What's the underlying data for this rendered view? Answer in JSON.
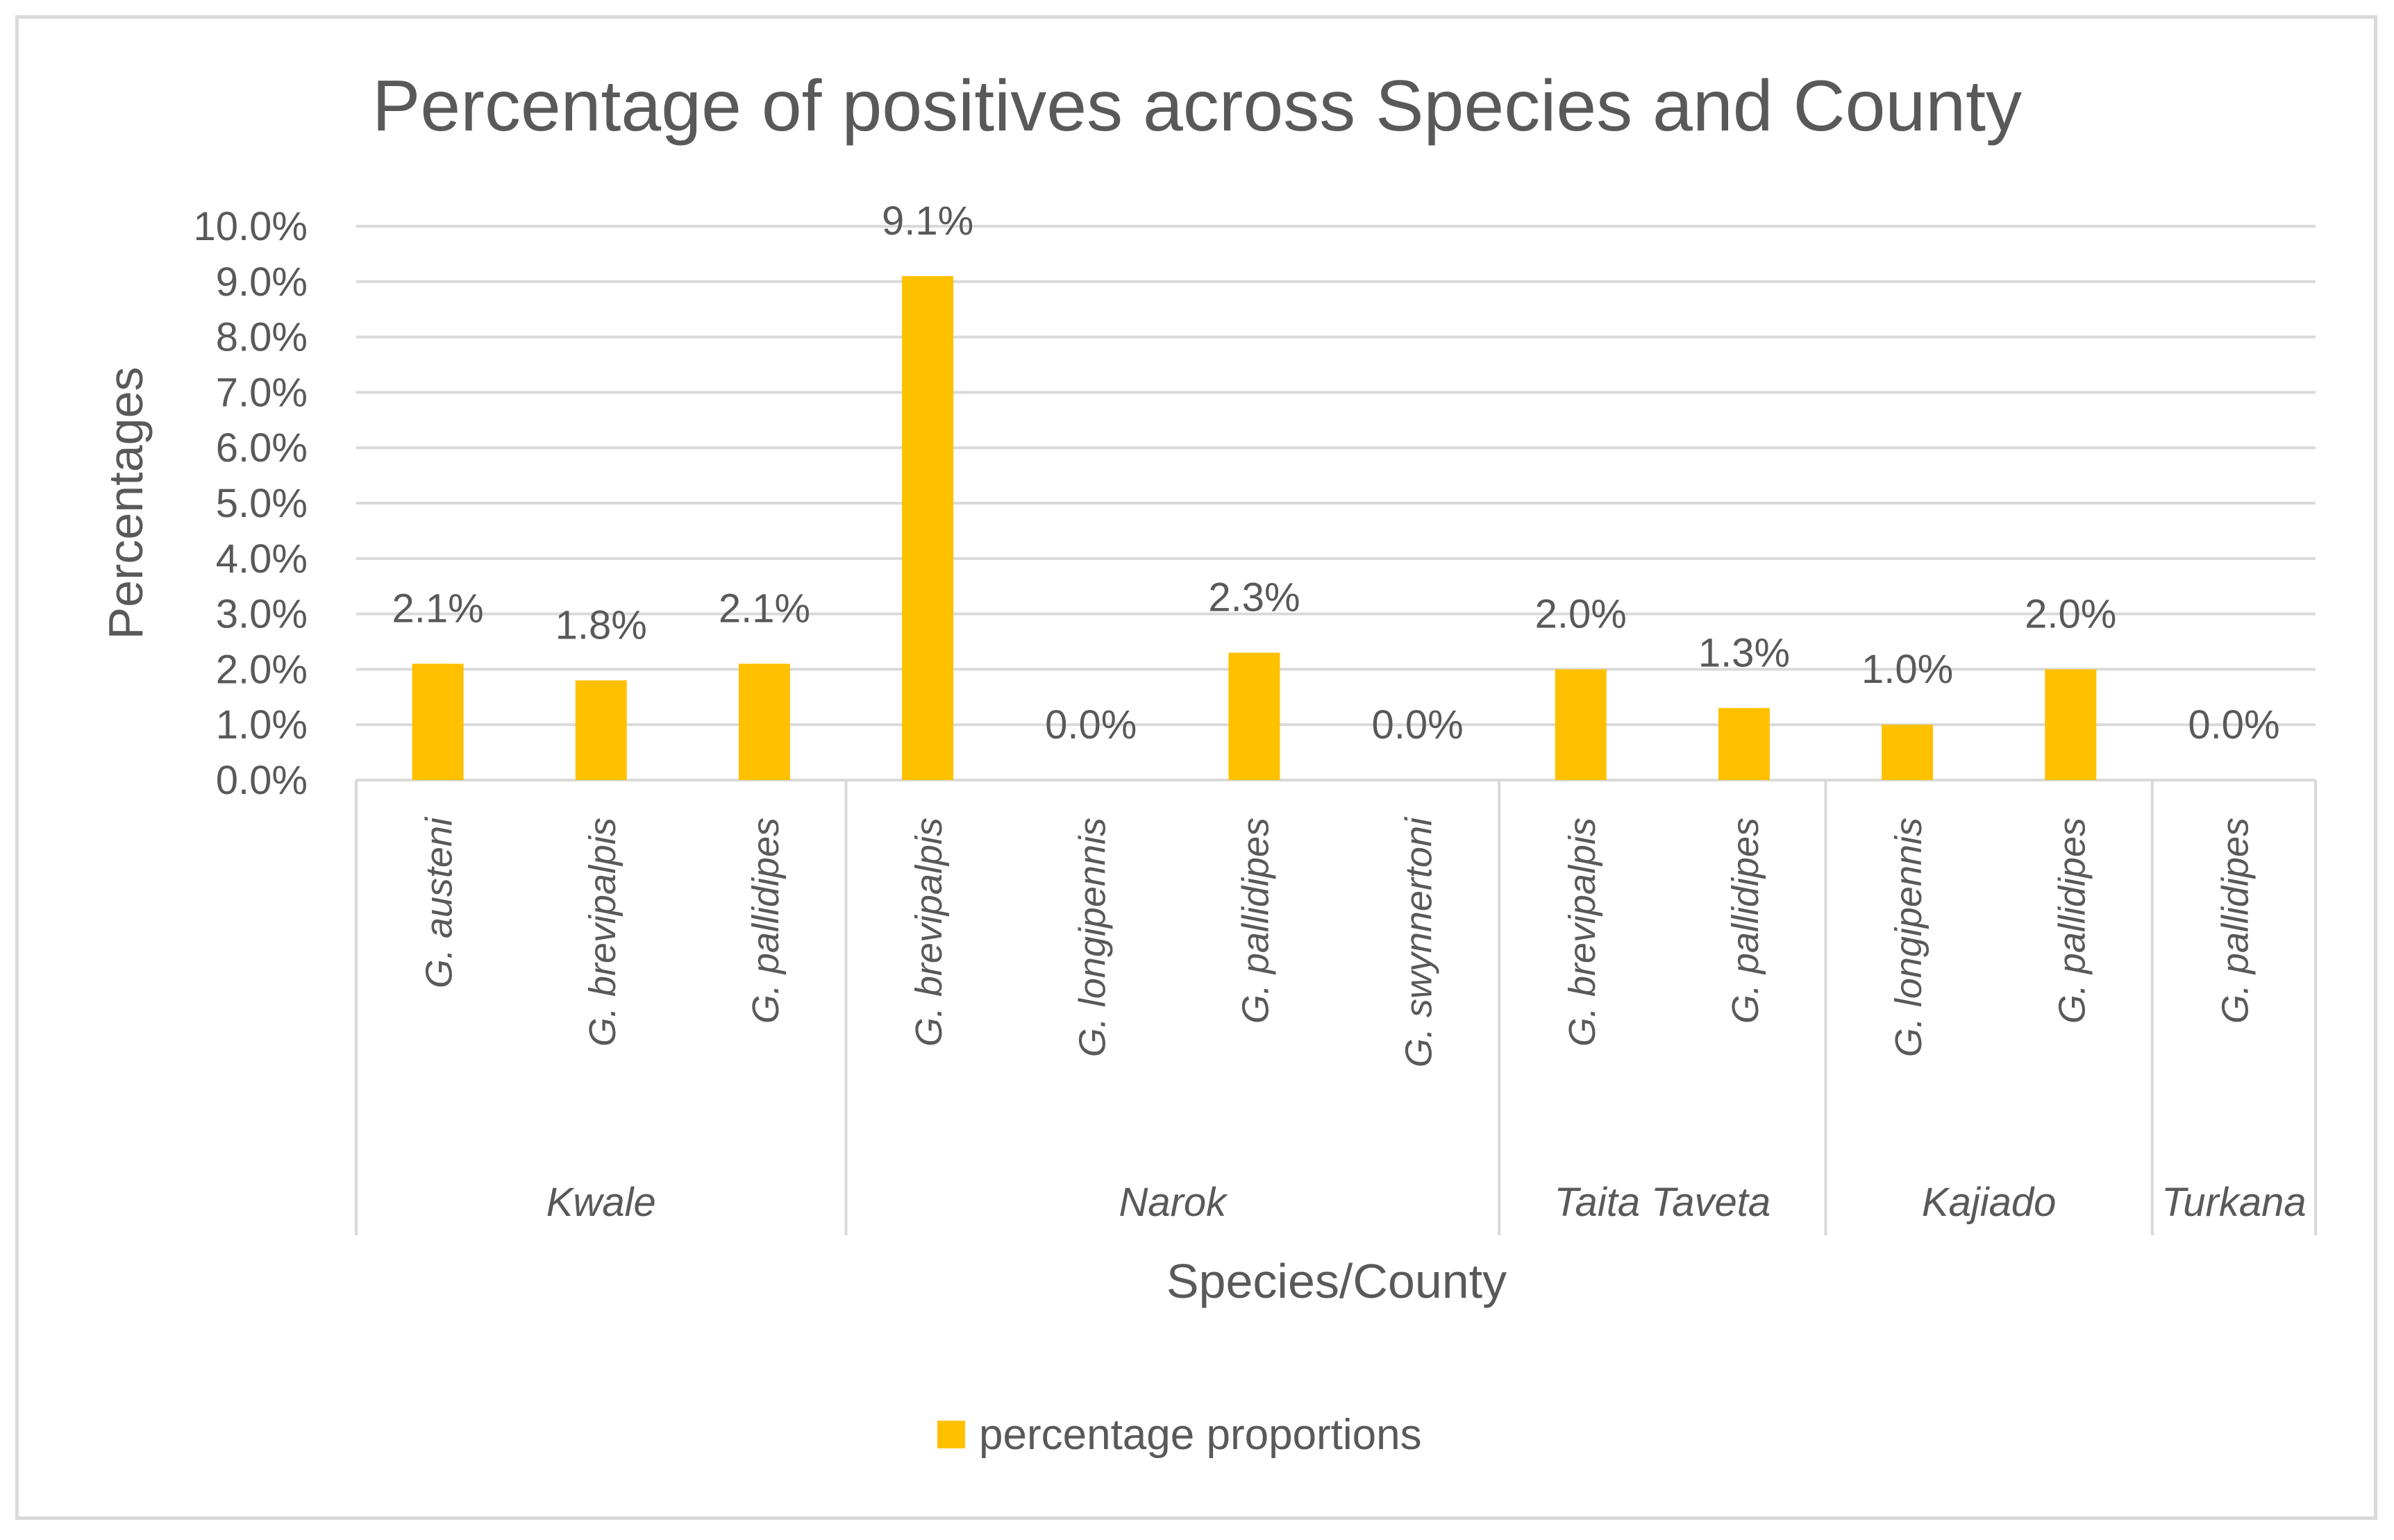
{
  "chart_data": {
    "type": "bar",
    "title": "Percentage of positives across Species and County",
    "xlabel": "Species/County",
    "ylabel": "Percentages",
    "ylim": [
      0,
      10
    ],
    "y_ticks": [
      "0.0%",
      "1.0%",
      "2.0%",
      "3.0%",
      "4.0%",
      "5.0%",
      "6.0%",
      "7.0%",
      "8.0%",
      "9.0%",
      "10.0%"
    ],
    "grid": true,
    "legend_position": "bottom",
    "groups": [
      {
        "name": "Kwale",
        "categories": [
          "G. austeni",
          "G. brevipalpis",
          "G. pallidipes"
        ]
      },
      {
        "name": "Narok",
        "categories": [
          "G. brevipalpis",
          "G. longipennis",
          "G. pallidipes",
          "G. swynnertoni"
        ]
      },
      {
        "name": "Taita Taveta",
        "categories": [
          "G. brevipalpis",
          "G. pallidipes"
        ]
      },
      {
        "name": "Kajiado",
        "categories": [
          "G. longipennis",
          "G. pallidipes"
        ]
      },
      {
        "name": "Turkana",
        "categories": [
          "G. pallidipes"
        ]
      }
    ],
    "series": [
      {
        "name": "percentage proportions",
        "color": "#ffc000",
        "values": [
          2.1,
          1.8,
          2.1,
          9.1,
          0.0,
          2.3,
          0.0,
          2.0,
          1.3,
          1.0,
          2.0,
          0.0
        ],
        "data_labels": [
          "2.1%",
          "1.8%",
          "2.1%",
          "9.1%",
          "0.0%",
          "2.3%",
          "0.0%",
          "2.0%",
          "1.3%",
          "1.0%",
          "2.0%",
          "0.0%"
        ]
      }
    ]
  },
  "colors": {
    "bar": "#ffc000",
    "grid": "#d9d9d9",
    "text": "#595959"
  }
}
